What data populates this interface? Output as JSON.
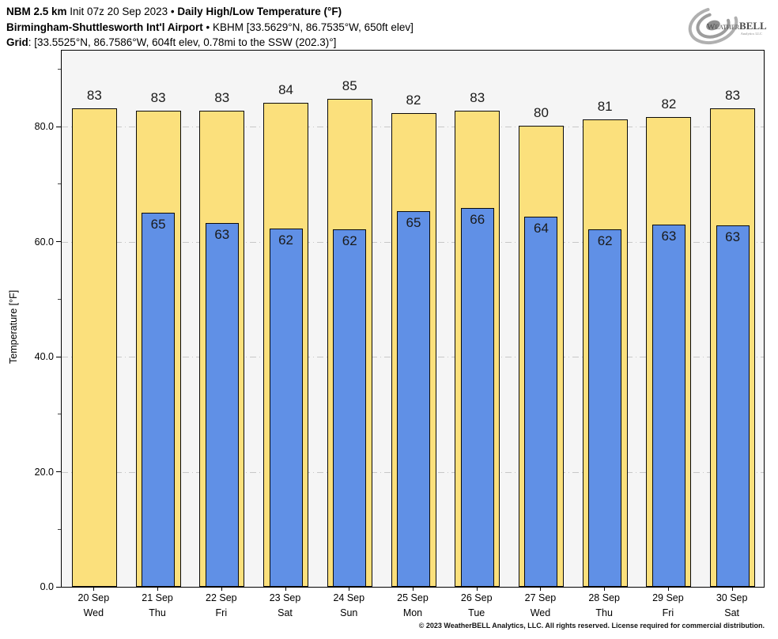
{
  "header": {
    "line1": {
      "model": "NBM 2.5 km",
      "init": "Init 07z 20 Sep 2023",
      "sep": "•",
      "product": "Daily High/Low Temperature (°F)"
    },
    "line2": {
      "station": "Birmingham-Shuttlesworth Int'l Airport",
      "sep": "•",
      "details": "KBHM [33.5629°N, 86.7535°W, 650ft elev]"
    },
    "line3": {
      "label": "Grid",
      "details": ": [33.5525°N, 86.7586°W, 604ft elev, 0.78mi to the SSW (202.3)°]"
    }
  },
  "logo": {
    "brand_prefix": "Weather",
    "brand_suffix": "BELL",
    "subtitle": "Analytics LLC"
  },
  "chart_data": {
    "type": "bar",
    "title": "Daily High/Low Temperature (°F)",
    "xlabel": "",
    "ylabel": "Temperature [°F]",
    "ylim": [
      0,
      93.2
    ],
    "yticks": [
      0,
      20,
      40,
      60,
      80
    ],
    "ytick_labels": [
      "0.0",
      "20.0",
      "40.0",
      "60.0",
      "80.0"
    ],
    "yticks_minor": [
      10,
      30,
      50,
      70,
      90
    ],
    "grid": "horizontal dash-dot at major ticks",
    "legend": "none",
    "categories": [
      {
        "date": "20 Sep",
        "day": "Wed"
      },
      {
        "date": "21 Sep",
        "day": "Thu"
      },
      {
        "date": "22 Sep",
        "day": "Fri"
      },
      {
        "date": "23 Sep",
        "day": "Sat"
      },
      {
        "date": "24 Sep",
        "day": "Sun"
      },
      {
        "date": "25 Sep",
        "day": "Mon"
      },
      {
        "date": "26 Sep",
        "day": "Tue"
      },
      {
        "date": "27 Sep",
        "day": "Wed"
      },
      {
        "date": "28 Sep",
        "day": "Thu"
      },
      {
        "date": "29 Sep",
        "day": "Fri"
      },
      {
        "date": "30 Sep",
        "day": "Sat"
      }
    ],
    "series": [
      {
        "name": "Daily High",
        "color": "#FBE07C",
        "values": [
          83,
          83,
          83,
          84,
          85,
          82,
          83,
          80,
          81,
          82,
          83
        ],
        "values_exact": [
          83.2,
          82.8,
          82.7,
          84.1,
          84.8,
          82.3,
          82.7,
          80.1,
          81.2,
          81.6,
          83.2
        ]
      },
      {
        "name": "Daily Low",
        "color": "#6090E6",
        "values": [
          null,
          65,
          63,
          62,
          62,
          65,
          66,
          64,
          62,
          63,
          63
        ],
        "values_exact": [
          null,
          65.0,
          63.3,
          62.3,
          62.2,
          65.3,
          65.8,
          64.4,
          62.1,
          63.0,
          62.8
        ]
      }
    ]
  },
  "footer": {
    "copyright": "© 2023 WeatherBELL Analytics, LLC. All rights reserved. License required for commercial distribution."
  },
  "colors": {
    "high_bar": "#FBE07C",
    "low_bar": "#6090E6",
    "plot_bg": "#F5F5F5",
    "gridline": "#C8C8C8",
    "bar_border": "#0A0A0A",
    "logo_gray": "#A3A3A3"
  }
}
